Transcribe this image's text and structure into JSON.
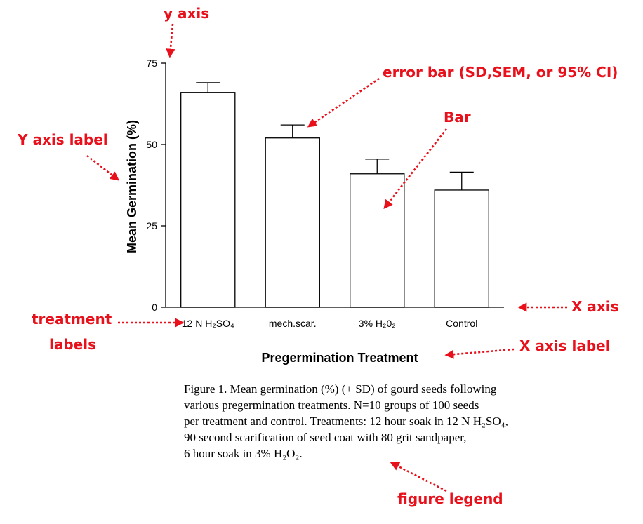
{
  "chart_data": {
    "type": "bar",
    "categories": [
      "12 N H₂SO₄",
      "mech.scar.",
      "3% H₂0₂",
      "Control"
    ],
    "values": [
      66,
      52,
      41,
      36
    ],
    "errors": [
      3,
      4,
      4.5,
      5.5
    ],
    "xlabel": "Pregermination Treatment",
    "ylabel": "Mean Germination (%)",
    "ylim": [
      0,
      75
    ],
    "yticks": [
      0,
      25,
      50,
      75
    ],
    "grid": false,
    "bar_color": "#ffffff",
    "bar_edge": "#000000"
  },
  "caption": {
    "lines": [
      "Figure 1. Mean germination (%) (+ SD) of gourd seeds following",
      "various pregermination treatments. N=10 groups of 100 seeds",
      "per treatment and control. Treatments: 12 hour soak in 12 N H₂SO₄,",
      "90 second scarification of seed coat with 80 grit sandpaper,",
      "6 hour soak in 3% H₂O₂."
    ]
  },
  "annotations": {
    "y_axis": "y axis",
    "y_axis_label": "Y axis label",
    "error_bar": "error bar (SD,SEM, or 95% CI)",
    "bar": "Bar",
    "x_axis": "X axis",
    "treatment_labels_1": "treatment",
    "treatment_labels_2": "labels",
    "x_axis_label": "X axis label",
    "figure_legend": "figure legend",
    "color": "#e8101a"
  }
}
